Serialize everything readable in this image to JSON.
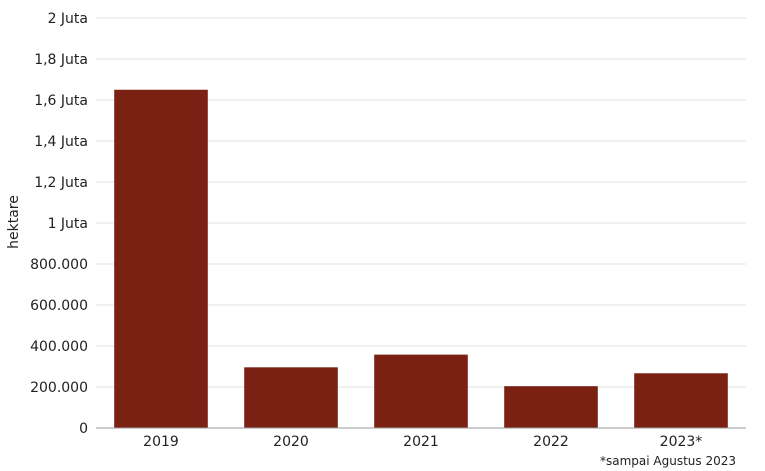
{
  "chart_data": {
    "type": "bar",
    "categories": [
      "2019",
      "2020",
      "2021",
      "2022",
      "2023*"
    ],
    "values": [
      1650000,
      296000,
      358000,
      204000,
      267000
    ],
    "ylabel": "hektare",
    "xlabel": "",
    "ylim": [
      0,
      2000000
    ],
    "yticks": [
      {
        "value": 0,
        "label": "0"
      },
      {
        "value": 200000,
        "label": "200.000"
      },
      {
        "value": 400000,
        "label": "400.000"
      },
      {
        "value": 600000,
        "label": "600.000"
      },
      {
        "value": 800000,
        "label": "800.000"
      },
      {
        "value": 1000000,
        "label": "1 Juta"
      },
      {
        "value": 1200000,
        "label": "1,2 Juta"
      },
      {
        "value": 1400000,
        "label": "1,4 Juta"
      },
      {
        "value": 1600000,
        "label": "1,6 Juta"
      },
      {
        "value": 1800000,
        "label": "1,8 Juta"
      },
      {
        "value": 2000000,
        "label": "2 Juta"
      }
    ],
    "grid": true,
    "bar_color": "#7b2113",
    "footnote": "*sampai Agustus 2023"
  }
}
